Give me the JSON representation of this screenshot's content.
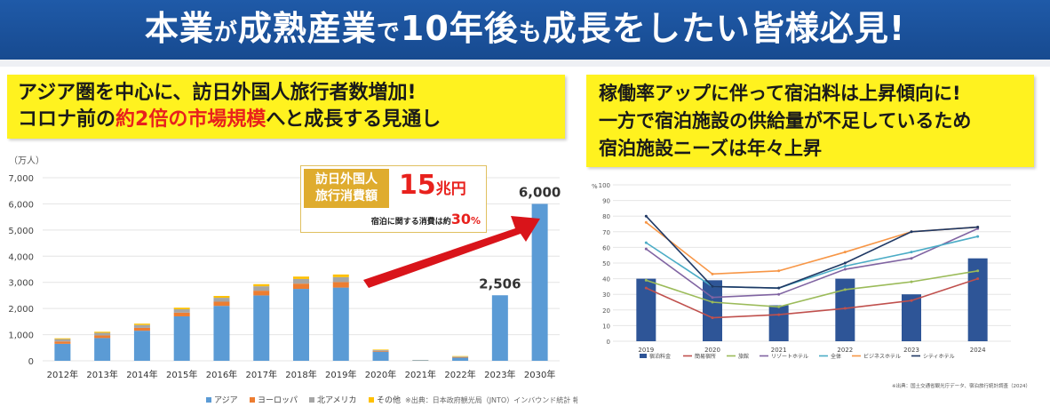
{
  "banner": {
    "part1": "本業",
    "part2": "が",
    "part3": "成熟産業",
    "part4": "で",
    "part5": "10年後",
    "part6": "も",
    "part7": "成長",
    "part8": "をしたい皆様必見!"
  },
  "left_box": {
    "line1": "アジア圏を中心に、訪日外国人旅行者数増加!",
    "line2_pre": "コロナ前の",
    "line2_red": "約2倍の市場規模",
    "line2_post": "へと成長する見通し"
  },
  "right_box": {
    "line1": "稼働率アップに伴って宿泊料は上昇傾向に!",
    "line2": "一方で宿泊施設の供給量が不足しているため",
    "line3": "宿泊施設ニーズは年々上昇"
  },
  "spend_callout": {
    "label_line1": "訪日外国人",
    "label_line2": "旅行消費額",
    "amount": "15",
    "amount_unit": "兆円",
    "sub_pre": "宿泊に関する消費は約",
    "sub_value": "30",
    "sub_unit": "%"
  },
  "colors": {
    "banner_blue": "#1f5aa8",
    "highlight_yellow": "#fff21f",
    "accent_red": "#e8211d",
    "bar_blue": "#5b9bd5",
    "bar_orange": "#ed7d31",
    "bar_gray": "#a5a5a5",
    "bar_gold": "#ffc000",
    "bar_navy": "#2e5597"
  },
  "chart_data": [
    {
      "type": "bar",
      "stacked": true,
      "unit_label": "（万人）",
      "categories": [
        "2012年",
        "2013年",
        "2014年",
        "2015年",
        "2016年",
        "2017年",
        "2018年",
        "2019年",
        "2020年",
        "2021年",
        "2022年",
        "2023年",
        "2030年"
      ],
      "yticks": [
        "0",
        "1,000",
        "2,000",
        "3,000",
        "4,000",
        "5,000",
        "6,000",
        "7,000"
      ],
      "ylim": [
        0,
        7000
      ],
      "grid": true,
      "series": [
        {
          "name": "アジア",
          "color": "#5b9bd5",
          "values": [
            650,
            870,
            1150,
            1700,
            2100,
            2500,
            2750,
            2800,
            350,
            20,
            120,
            2506,
            6000
          ]
        },
        {
          "name": "ヨーロッパ",
          "color": "#ed7d31",
          "values": [
            90,
            100,
            110,
            140,
            160,
            180,
            200,
            210,
            30,
            5,
            20,
            0,
            0
          ]
        },
        {
          "name": "北アメリカ",
          "color": "#a5a5a5",
          "values": [
            90,
            100,
            110,
            130,
            150,
            170,
            180,
            190,
            30,
            5,
            20,
            0,
            0
          ]
        },
        {
          "name": "その他",
          "color": "#ffc000",
          "values": [
            30,
            40,
            50,
            60,
            70,
            80,
            90,
            100,
            20,
            4,
            20,
            0,
            0
          ]
        }
      ],
      "data_labels": [
        {
          "category": "2023年",
          "text": "2,506"
        },
        {
          "category": "2030年",
          "text": "6,000"
        }
      ],
      "legend_position": "bottom",
      "source": "※出典：日本政府観光局（JNTO）インバウンド統計 報告"
    },
    {
      "type": "bar+line",
      "unit_label": "%",
      "categories": [
        "2019",
        "2020",
        "2021",
        "2022",
        "2023",
        "2024"
      ],
      "yticks": [
        "0",
        "10",
        "20",
        "30",
        "40",
        "50",
        "60",
        "70",
        "80",
        "90",
        "100"
      ],
      "ylim": [
        0,
        100
      ],
      "grid": true,
      "bar_series": {
        "name": "宿泊料金",
        "color": "#2e5597",
        "values": [
          40,
          39,
          23,
          40,
          30,
          53
        ]
      },
      "series": [
        {
          "name": "簡易宿所",
          "color": "#c0504d",
          "values": [
            34,
            15,
            17,
            21,
            26,
            40
          ]
        },
        {
          "name": "旅館",
          "color": "#9bbb59",
          "values": [
            39,
            25,
            22,
            33,
            38,
            45
          ]
        },
        {
          "name": "リゾートホテル",
          "color": "#8064a2",
          "values": [
            59,
            28,
            30,
            46,
            53,
            72
          ]
        },
        {
          "name": "全体",
          "color": "#4bacc6",
          "values": [
            63,
            35,
            34,
            48,
            57,
            67
          ]
        },
        {
          "name": "ビジネスホテル",
          "color": "#f79646",
          "values": [
            76,
            43,
            45,
            57,
            70,
            73
          ]
        },
        {
          "name": "シティホテル",
          "color": "#1f3864",
          "values": [
            80,
            35,
            34,
            50,
            70,
            73
          ]
        }
      ],
      "legend_position": "bottom",
      "source": "※出典：国土交通省観光庁データ、宿泊旅行統計調査（2024）"
    }
  ]
}
